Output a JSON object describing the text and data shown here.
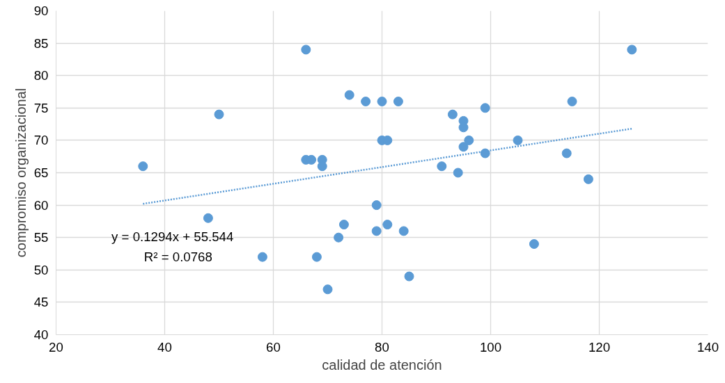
{
  "chart_data": {
    "type": "scatter",
    "xlabel": "calidad de atención",
    "ylabel": "compromiso organizacional",
    "xlim": [
      20,
      140
    ],
    "ylim": [
      40,
      90
    ],
    "xticks": [
      20,
      40,
      60,
      80,
      100,
      120,
      140
    ],
    "yticks": [
      40,
      45,
      50,
      55,
      60,
      65,
      70,
      75,
      80,
      85,
      90
    ],
    "grid": true,
    "marker": "circle",
    "series": [
      {
        "type": "scatter",
        "color": "#5b9bd5",
        "x": [
          36,
          48,
          50,
          58,
          66,
          66,
          67,
          69,
          69,
          68,
          70,
          72,
          73,
          74,
          77,
          79,
          79,
          80,
          80,
          81,
          81,
          83,
          84,
          85,
          91,
          93,
          94,
          95,
          95,
          95,
          96,
          99,
          99,
          105,
          108,
          114,
          115,
          118,
          126
        ],
        "values": [
          66,
          58,
          74,
          52,
          84,
          67,
          67,
          67,
          66,
          52,
          47,
          55,
          57,
          77,
          76,
          60,
          56,
          76,
          70,
          70,
          57,
          76,
          56,
          49,
          66,
          74,
          65,
          73,
          72,
          69,
          70,
          75,
          68,
          70,
          54,
          68,
          76,
          64,
          84
        ]
      },
      {
        "type": "line",
        "color": "#5b9bd5",
        "line_style": "dotted",
        "marker": "none",
        "x": [
          36,
          126
        ],
        "values": [
          60.2,
          71.8
        ]
      }
    ],
    "annotations": [
      "y = 0.1294x + 55.544",
      "R² = 0.0768"
    ]
  }
}
